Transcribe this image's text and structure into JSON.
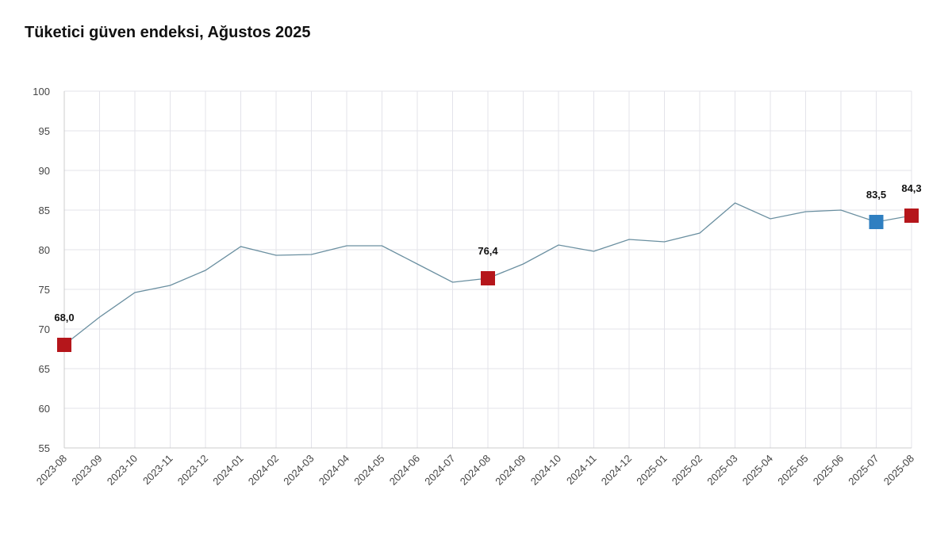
{
  "chart_data": {
    "type": "line",
    "title": "Tüketici güven endeksi, Ağustos 2025",
    "xlabel": "",
    "ylabel": "",
    "ylim": [
      55,
      100
    ],
    "yticks": [
      "55",
      "60",
      "65",
      "70",
      "75",
      "80",
      "85",
      "90",
      "95",
      "100"
    ],
    "grid": true,
    "x": [
      "2023-08",
      "2023-09",
      "2023-10",
      "2023-11",
      "2023-12",
      "2024-01",
      "2024-02",
      "2024-03",
      "2024-04",
      "2024-05",
      "2024-06",
      "2024-07",
      "2024-08",
      "2024-09",
      "2024-10",
      "2024-11",
      "2024-12",
      "2025-01",
      "2025-02",
      "2025-03",
      "2025-04",
      "2025-05",
      "2025-06",
      "2025-07",
      "2025-08"
    ],
    "values": [
      68.0,
      71.5,
      74.6,
      75.5,
      77.4,
      80.4,
      79.3,
      79.4,
      80.5,
      80.5,
      78.2,
      75.9,
      76.4,
      78.2,
      80.6,
      79.8,
      81.3,
      81.0,
      82.1,
      85.9,
      83.9,
      84.8,
      85.0,
      83.5,
      84.3
    ],
    "line_color": "#6a8fa0",
    "highlighted": [
      {
        "x": "2023-08",
        "label": "68,0",
        "color": "#b5161b"
      },
      {
        "x": "2024-08",
        "label": "76,4",
        "color": "#b5161b"
      },
      {
        "x": "2025-07",
        "label": "83,5",
        "color": "#2f7fc1"
      },
      {
        "x": "2025-08",
        "label": "84,3",
        "color": "#b5161b"
      }
    ]
  }
}
